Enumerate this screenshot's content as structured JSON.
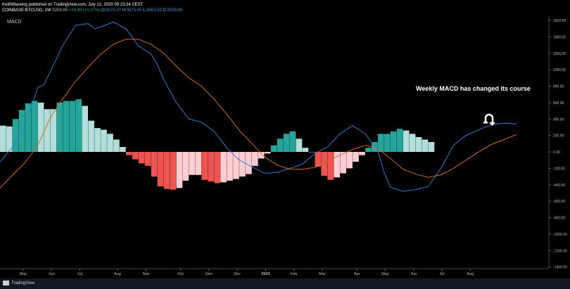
{
  "header": {
    "line1": "KeithWareing published on TradingView.com, July 12, 2020 09:23:34 CEST",
    "symbol": "COINBASE:BTCUSD, 1W",
    "price": "9259.89",
    "change": "+24.89 (+0.27%)",
    "open_l": "O:",
    "open": "9274.37",
    "high_l": "H:",
    "high": "9475.00",
    "low_l": "L:",
    "low": "9063.59",
    "close_l": "C:",
    "close": "9259.89"
  },
  "annotation": "Weekly MACD has changed its course",
  "footer": {
    "brand": "TradingView"
  },
  "colors": {
    "macd_line": "#2f7bd1",
    "signal_line": "#d2691e",
    "hist_up_strong": "#26a69a",
    "hist_up_weak": "#b2dfdb",
    "hist_down_strong": "#ef5350",
    "hist_down_weak": "#ffcdd2"
  },
  "chart_data": {
    "type": "bar",
    "title": "MACD",
    "y_ticks": [
      1600,
      1400,
      1200,
      1000,
      800,
      600,
      400,
      200,
      0,
      -200,
      -400,
      -600,
      -800,
      -1000,
      -1200,
      -1400
    ],
    "y_tick_labels": [
      "1600.00",
      "1400.00",
      "1200.00",
      "1000.00",
      "800.00",
      "600.00",
      "400.00",
      "200.00",
      "0.00",
      "-200.00",
      "-400.00",
      "-600.00",
      "-800.00",
      "-1000.00",
      "-1200.00",
      "-1400.00"
    ],
    "ylim": [
      -1420,
      1660
    ],
    "x_tick_labels": [
      "May",
      "Jun",
      "Jul",
      "Aug",
      "Sep",
      "Oct",
      "Nov",
      "Dec",
      "2020",
      "Feb",
      "Mar",
      "Apr",
      "May",
      "Jun",
      "Jul",
      "Aug"
    ],
    "x_tick_week": [
      3,
      7.5,
      12,
      18,
      22.5,
      28,
      32.5,
      37,
      41.5,
      46,
      50.5,
      56,
      60.5,
      65,
      69.5,
      74
    ],
    "week_count": 77,
    "histogram": [
      {
        "v": 320,
        "s": "w+"
      },
      {
        "v": 310,
        "s": "w+"
      },
      {
        "v": 400,
        "s": "s+"
      },
      {
        "v": 510,
        "s": "s+"
      },
      {
        "v": 590,
        "s": "s+"
      },
      {
        "v": 620,
        "s": "s+"
      },
      {
        "v": 600,
        "s": "w+"
      },
      {
        "v": 520,
        "s": "w+"
      },
      {
        "v": 520,
        "s": "w+"
      },
      {
        "v": 600,
        "s": "s+"
      },
      {
        "v": 620,
        "s": "s+"
      },
      {
        "v": 620,
        "s": "s+"
      },
      {
        "v": 640,
        "s": "s+"
      },
      {
        "v": 560,
        "s": "w+"
      },
      {
        "v": 380,
        "s": "w+"
      },
      {
        "v": 290,
        "s": "w+"
      },
      {
        "v": 270,
        "s": "w+"
      },
      {
        "v": 220,
        "s": "w+"
      },
      {
        "v": 150,
        "s": "w+"
      },
      {
        "v": 60,
        "s": "w+"
      },
      {
        "v": -40,
        "s": "s-"
      },
      {
        "v": -90,
        "s": "s-"
      },
      {
        "v": -140,
        "s": "s-"
      },
      {
        "v": -170,
        "s": "s-"
      },
      {
        "v": -300,
        "s": "s-"
      },
      {
        "v": -420,
        "s": "s-"
      },
      {
        "v": -450,
        "s": "s-"
      },
      {
        "v": -460,
        "s": "s-"
      },
      {
        "v": -440,
        "s": "w-"
      },
      {
        "v": -350,
        "s": "w-"
      },
      {
        "v": -280,
        "s": "w-"
      },
      {
        "v": -280,
        "s": "w-"
      },
      {
        "v": -340,
        "s": "s-"
      },
      {
        "v": -360,
        "s": "s-"
      },
      {
        "v": -380,
        "s": "s-"
      },
      {
        "v": -370,
        "s": "w-"
      },
      {
        "v": -350,
        "s": "w-"
      },
      {
        "v": -330,
        "s": "w-"
      },
      {
        "v": -300,
        "s": "w-"
      },
      {
        "v": -270,
        "s": "w-"
      },
      {
        "v": -170,
        "s": "w-"
      },
      {
        "v": -80,
        "s": "w-"
      },
      {
        "v": -20,
        "s": "w-"
      },
      {
        "v": 80,
        "s": "s+"
      },
      {
        "v": 160,
        "s": "s+"
      },
      {
        "v": 220,
        "s": "s+"
      },
      {
        "v": 250,
        "s": "s+"
      },
      {
        "v": 160,
        "s": "w+"
      },
      {
        "v": 50,
        "s": "w+"
      },
      {
        "v": 0,
        "s": "w+"
      },
      {
        "v": -180,
        "s": "s-"
      },
      {
        "v": -290,
        "s": "s-"
      },
      {
        "v": -340,
        "s": "s-"
      },
      {
        "v": -310,
        "s": "w-"
      },
      {
        "v": -260,
        "s": "w-"
      },
      {
        "v": -200,
        "s": "w-"
      },
      {
        "v": -120,
        "s": "w-"
      },
      {
        "v": -40,
        "s": "w-"
      },
      {
        "v": 50,
        "s": "s+"
      },
      {
        "v": 120,
        "s": "s+"
      },
      {
        "v": 220,
        "s": "s+"
      },
      {
        "v": 220,
        "s": "s+"
      },
      {
        "v": 250,
        "s": "s+"
      },
      {
        "v": 280,
        "s": "s+"
      },
      {
        "v": 260,
        "s": "w+"
      },
      {
        "v": 220,
        "s": "w+"
      },
      {
        "v": 180,
        "s": "w+"
      },
      {
        "v": 150,
        "s": "w+"
      },
      {
        "v": 120,
        "s": "w+"
      }
    ],
    "series": [
      {
        "color": "#2f7bd1",
        "points": [
          [
            0,
            -120
          ],
          [
            2,
            60
          ],
          [
            4,
            330
          ],
          [
            6,
            780
          ],
          [
            7,
            820
          ],
          [
            9,
            1140
          ],
          [
            10,
            1300
          ],
          [
            12,
            1540
          ],
          [
            14,
            1560
          ],
          [
            15,
            1500
          ],
          [
            16,
            1520
          ],
          [
            18,
            1580
          ],
          [
            20,
            1500
          ],
          [
            22,
            1290
          ],
          [
            24,
            1190
          ],
          [
            25,
            1060
          ],
          [
            26,
            880
          ],
          [
            28,
            600
          ],
          [
            30,
            400
          ],
          [
            32,
            360
          ],
          [
            34,
            250
          ],
          [
            36,
            50
          ],
          [
            38,
            -100
          ],
          [
            40,
            -180
          ],
          [
            42,
            -260
          ],
          [
            44,
            -250
          ],
          [
            46,
            -200
          ],
          [
            48,
            -150
          ],
          [
            50,
            -20
          ],
          [
            52,
            60
          ],
          [
            54,
            220
          ],
          [
            56,
            320
          ],
          [
            58,
            220
          ],
          [
            60,
            10
          ],
          [
            61,
            -250
          ],
          [
            62,
            -430
          ],
          [
            64,
            -480
          ],
          [
            66,
            -460
          ],
          [
            68,
            -420
          ],
          [
            70,
            -200
          ],
          [
            72,
            80
          ],
          [
            74,
            200
          ],
          [
            76,
            270
          ],
          [
            78,
            330
          ],
          [
            80,
            350
          ],
          [
            82,
            340
          ]
        ]
      },
      {
        "color": "#d2691e",
        "points": [
          [
            0,
            -440
          ],
          [
            2,
            -280
          ],
          [
            4,
            -130
          ],
          [
            6,
            80
          ],
          [
            8,
            420
          ],
          [
            10,
            650
          ],
          [
            12,
            860
          ],
          [
            14,
            1030
          ],
          [
            16,
            1190
          ],
          [
            18,
            1310
          ],
          [
            20,
            1370
          ],
          [
            22,
            1370
          ],
          [
            24,
            1310
          ],
          [
            26,
            1200
          ],
          [
            28,
            1040
          ],
          [
            30,
            900
          ],
          [
            32,
            800
          ],
          [
            34,
            640
          ],
          [
            36,
            460
          ],
          [
            38,
            260
          ],
          [
            40,
            100
          ],
          [
            42,
            -60
          ],
          [
            44,
            -160
          ],
          [
            46,
            -210
          ],
          [
            48,
            -210
          ],
          [
            50,
            -190
          ],
          [
            52,
            -110
          ],
          [
            54,
            -40
          ],
          [
            56,
            30
          ],
          [
            58,
            80
          ],
          [
            60,
            40
          ],
          [
            62,
            -80
          ],
          [
            64,
            -210
          ],
          [
            66,
            -270
          ],
          [
            68,
            -310
          ],
          [
            70,
            -280
          ],
          [
            72,
            -200
          ],
          [
            74,
            -100
          ],
          [
            76,
            0
          ],
          [
            78,
            90
          ],
          [
            80,
            150
          ],
          [
            82,
            210
          ]
        ]
      }
    ]
  }
}
